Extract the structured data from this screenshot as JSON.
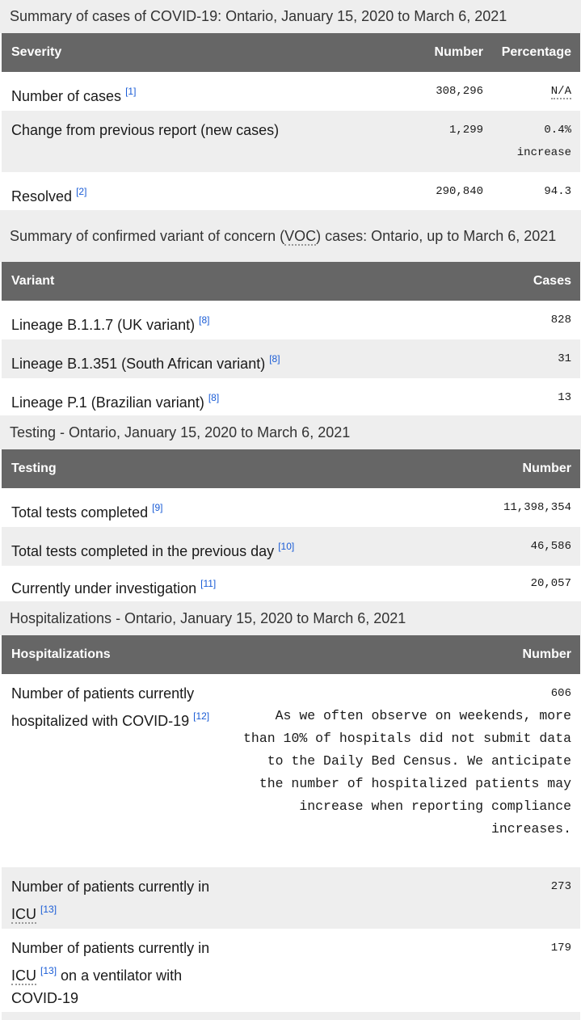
{
  "cases": {
    "caption": "Summary of cases of COVID-19: Ontario, January 15, 2020 to March 6, 2021",
    "headers": [
      "Severity",
      "Number",
      "Percentage"
    ],
    "rows": [
      {
        "label": "Number of cases",
        "ref": "[1]",
        "number": "308,296",
        "percentage": "N/A"
      },
      {
        "label": "Change from previous report (new cases)",
        "number": "1,299",
        "percentage": "0.4%",
        "percentage_note": "increase"
      },
      {
        "label": "Resolved",
        "ref": "[2]",
        "number": "290,840",
        "percentage": "94.3"
      }
    ]
  },
  "variants": {
    "caption_a": "Summary of confirmed variant of concern (",
    "caption_abbr": "VOC",
    "caption_b": ") cases: Ontario, up to March 6, 2021",
    "headers": [
      "Variant",
      "Cases"
    ],
    "rows": [
      {
        "label": "Lineage B.1.1.7 (UK variant)",
        "ref": "[8]",
        "value": "828"
      },
      {
        "label": "Lineage B.1.351 (South African variant)",
        "ref": "[8]",
        "value": "31"
      },
      {
        "label": "Lineage P.1 (Brazilian variant)",
        "ref": "[8]",
        "value": "13"
      }
    ]
  },
  "testing": {
    "caption": "Testing - Ontario, January 15, 2020 to March 6, 2021",
    "headers": [
      "Testing",
      "Number"
    ],
    "rows": [
      {
        "label": "Total tests completed",
        "ref": "[9]",
        "value": "11,398,354"
      },
      {
        "label": "Total tests completed in the previous day",
        "ref": "[10]",
        "value": "46,586"
      },
      {
        "label": "Currently under investigation",
        "ref": "[11]",
        "value": "20,057"
      }
    ]
  },
  "hosp": {
    "caption": "Hospitalizations - Ontario, January 15, 2020 to March 6, 2021",
    "headers": [
      "Hospitalizations",
      "Number"
    ],
    "r1": {
      "label": "Number of patients currently hospitalized with COVID-19",
      "ref": "[12]",
      "value": "606",
      "note": "As we often observe on weekends, more than 10% of hospitals did not submit data to the Daily Bed Census. We anticipate the number of hospitalized patients may increase when reporting compliance increases."
    },
    "r2": {
      "label_a": "Number of patients currently in",
      "abbr": "ICU",
      "ref": "[13]",
      "value": "273"
    },
    "r3": {
      "label_a": "Number of patients currently in",
      "abbr": "ICU",
      "ref": "[13]",
      "label_b": "on a ventilator with COVID-19",
      "value": "179"
    }
  }
}
